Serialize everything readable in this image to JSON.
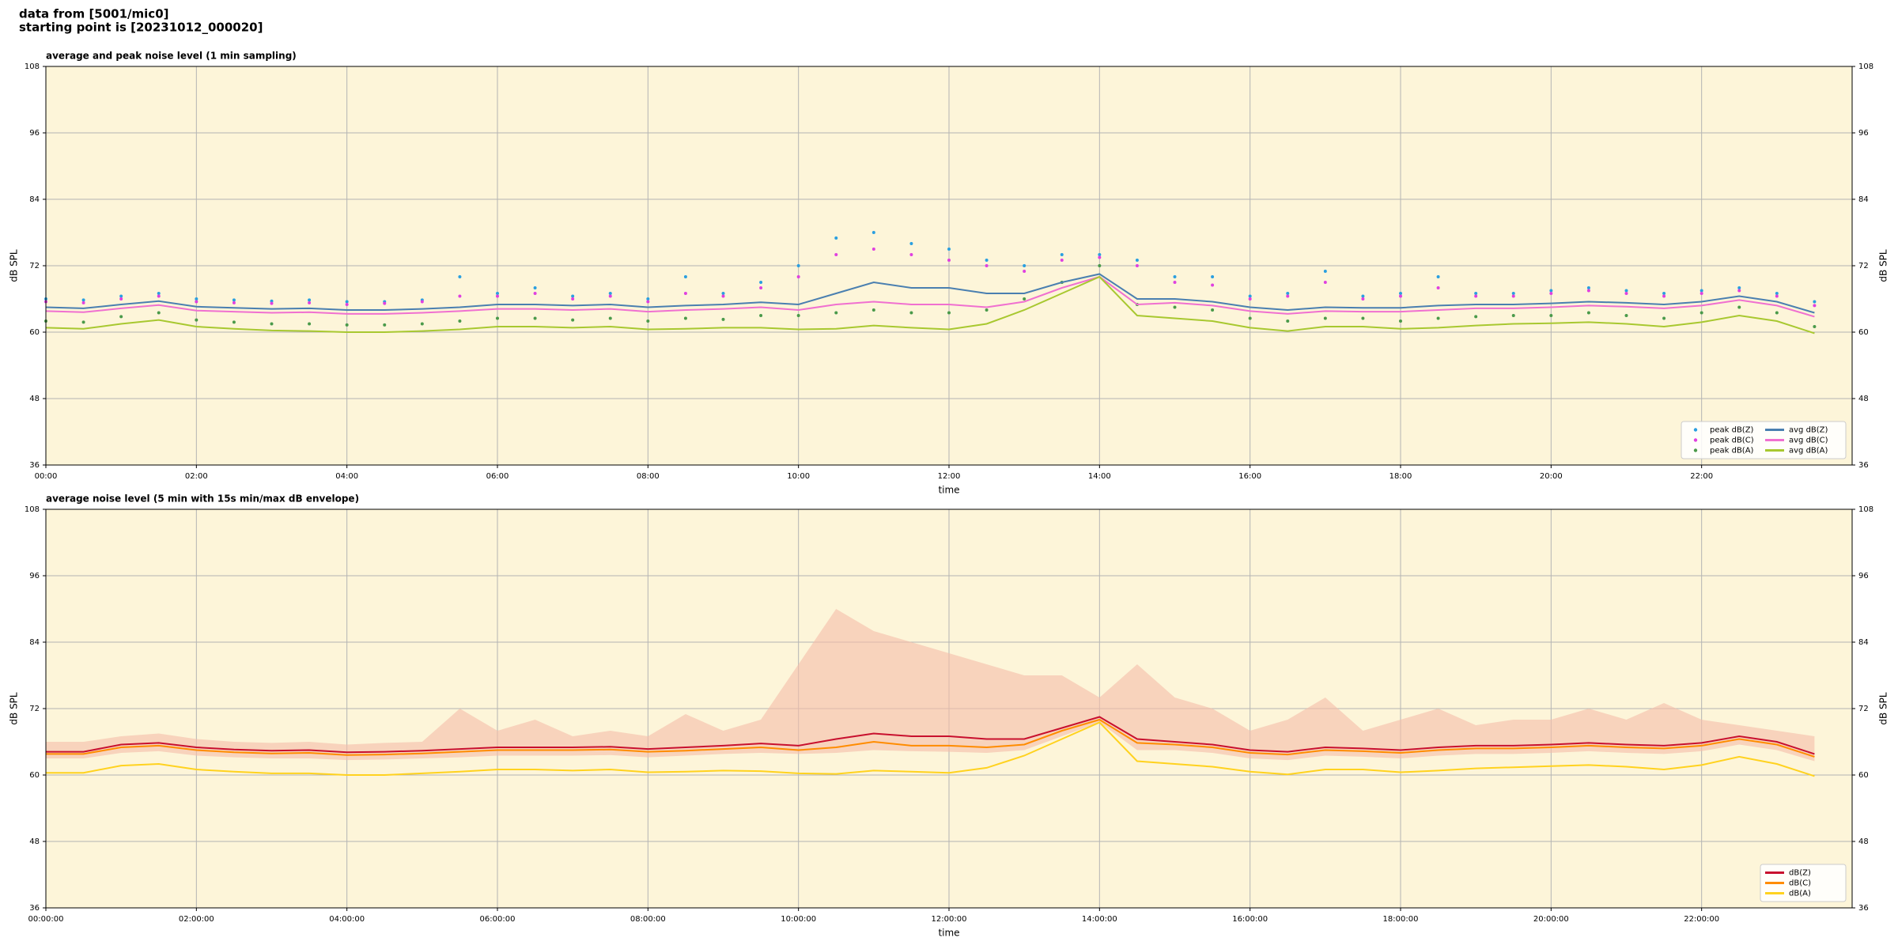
{
  "header": {
    "line1": "data from [5001/mic0]",
    "line2": "starting point is [20231012_000020]"
  },
  "chart_data": [
    {
      "type": "line",
      "title": "average and peak noise level (1 min sampling)",
      "xlabel": "time",
      "ylabel": "dB SPL",
      "x": [
        0,
        0.5,
        1,
        1.5,
        2,
        2.5,
        3,
        3.5,
        4,
        4.5,
        5,
        5.5,
        6,
        6.5,
        7,
        7.5,
        8,
        8.5,
        9,
        9.5,
        10,
        10.5,
        11,
        11.5,
        12,
        12.5,
        13,
        13.5,
        14,
        14.5,
        15,
        15.5,
        16,
        16.5,
        17,
        17.5,
        18,
        18.5,
        19,
        19.5,
        20,
        20.5,
        21,
        21.5,
        22,
        22.5,
        23,
        23.5
      ],
      "xlim": [
        0,
        24
      ],
      "xticks": [
        {
          "value": 0,
          "label": "00:00"
        },
        {
          "value": 2,
          "label": "02:00"
        },
        {
          "value": 4,
          "label": "04:00"
        },
        {
          "value": 6,
          "label": "06:00"
        },
        {
          "value": 8,
          "label": "08:00"
        },
        {
          "value": 10,
          "label": "10:00"
        },
        {
          "value": 12,
          "label": "12:00"
        },
        {
          "value": 14,
          "label": "14:00"
        },
        {
          "value": 16,
          "label": "16:00"
        },
        {
          "value": 18,
          "label": "18:00"
        },
        {
          "value": 20,
          "label": "20:00"
        },
        {
          "value": 22,
          "label": "22:00"
        }
      ],
      "ylim": [
        36,
        108
      ],
      "yticks": [
        36,
        48,
        60,
        72,
        84,
        96,
        108
      ],
      "grid": true,
      "legend": "lower right",
      "legend_columns": 2,
      "series": [
        {
          "name": "peak dB(Z)",
          "style": "dots",
          "color": "#2a9fe0",
          "values": [
            66,
            65.8,
            66.5,
            67,
            66,
            65.8,
            65.6,
            65.8,
            65.5,
            65.5,
            65.8,
            70,
            67,
            68,
            66.5,
            67,
            66,
            70,
            67,
            69,
            72,
            77,
            78,
            76,
            75,
            73,
            72,
            74,
            74,
            73,
            70,
            70,
            66.5,
            67,
            71,
            66.5,
            67,
            70,
            67,
            67,
            67.5,
            68,
            67.5,
            67,
            67.5,
            68,
            67,
            65.5
          ]
        },
        {
          "name": "peak dB(C)",
          "style": "dots",
          "color": "#e040e0",
          "values": [
            65.5,
            65.3,
            66,
            66.5,
            65.5,
            65.3,
            65.2,
            65.3,
            65,
            65.2,
            65.5,
            66.5,
            66.5,
            67,
            66,
            66.5,
            65.5,
            67,
            66.5,
            68,
            70,
            74,
            75,
            74,
            73,
            72,
            71,
            73,
            73.5,
            72,
            69,
            68.5,
            66,
            66.5,
            69,
            66,
            66.5,
            68,
            66.5,
            66.5,
            67,
            67.5,
            67,
            66.5,
            67,
            67.5,
            66.5,
            64.8
          ]
        },
        {
          "name": "peak dB(A)",
          "style": "dots",
          "color": "#4a9a4a",
          "values": [
            62,
            61.8,
            62.8,
            63.5,
            62.2,
            61.8,
            61.5,
            61.5,
            61.3,
            61.3,
            61.5,
            62,
            62.5,
            62.5,
            62.2,
            62.5,
            62,
            62.5,
            62.3,
            63,
            63,
            63.5,
            64,
            63.5,
            63.5,
            64,
            66,
            69,
            72,
            65,
            64.5,
            64,
            62.5,
            62,
            62.5,
            62.5,
            62,
            62.5,
            62.8,
            63,
            63,
            63.5,
            63,
            62.5,
            63.5,
            64.5,
            63.5,
            61
          ]
        },
        {
          "name": "avg dB(Z)",
          "style": "line",
          "color": "#4a7fb0",
          "values": [
            64.5,
            64.3,
            65,
            65.6,
            64.6,
            64.4,
            64.2,
            64.3,
            64,
            64,
            64.2,
            64.5,
            65,
            65,
            64.8,
            65,
            64.5,
            64.8,
            65,
            65.4,
            65,
            67,
            69,
            68,
            68,
            67,
            67,
            69,
            70.5,
            66,
            66,
            65.5,
            64.5,
            64,
            64.5,
            64.4,
            64.4,
            64.8,
            65,
            65,
            65.2,
            65.5,
            65.3,
            65,
            65.5,
            66.5,
            65.5,
            63.5
          ]
        },
        {
          "name": "avg dB(C)",
          "style": "line",
          "color": "#f070d0",
          "values": [
            63.8,
            63.6,
            64.3,
            64.9,
            63.9,
            63.7,
            63.5,
            63.6,
            63.3,
            63.3,
            63.5,
            63.8,
            64.2,
            64.2,
            64,
            64.2,
            63.7,
            64,
            64.2,
            64.5,
            64,
            65,
            65.5,
            65,
            65,
            64.5,
            65.5,
            68,
            70,
            65,
            65.3,
            64.8,
            63.8,
            63.3,
            63.8,
            63.7,
            63.7,
            64,
            64.3,
            64.3,
            64.5,
            64.8,
            64.6,
            64.3,
            64.8,
            65.8,
            64.8,
            62.8
          ]
        },
        {
          "name": "avg dB(A)",
          "style": "line",
          "color": "#a8c830",
          "values": [
            60.8,
            60.6,
            61.5,
            62.2,
            61,
            60.6,
            60.3,
            60.2,
            60,
            60,
            60.2,
            60.5,
            61,
            61,
            60.8,
            61,
            60.5,
            60.6,
            60.8,
            60.8,
            60.5,
            60.6,
            61.2,
            60.8,
            60.5,
            61.5,
            64,
            67,
            70,
            63,
            62.5,
            62,
            60.8,
            60.2,
            61,
            61,
            60.6,
            60.8,
            61.2,
            61.5,
            61.6,
            61.8,
            61.5,
            61,
            61.8,
            63,
            62,
            59.8
          ]
        }
      ]
    },
    {
      "type": "line",
      "title": "average noise level (5 min with 15s min/max dB envelope)",
      "xlabel": "time",
      "ylabel": "dB SPL",
      "x": [
        0,
        0.5,
        1,
        1.5,
        2,
        2.5,
        3,
        3.5,
        4,
        4.5,
        5,
        5.5,
        6,
        6.5,
        7,
        7.5,
        8,
        8.5,
        9,
        9.5,
        10,
        10.5,
        11,
        11.5,
        12,
        12.5,
        13,
        13.5,
        14,
        14.5,
        15,
        15.5,
        16,
        16.5,
        17,
        17.5,
        18,
        18.5,
        19,
        19.5,
        20,
        20.5,
        21,
        21.5,
        22,
        22.5,
        23,
        23.5
      ],
      "xlim": [
        0,
        24
      ],
      "xticks": [
        {
          "value": 0,
          "label": "00:00:00"
        },
        {
          "value": 2,
          "label": "02:00:00"
        },
        {
          "value": 4,
          "label": "04:00:00"
        },
        {
          "value": 6,
          "label": "06:00:00"
        },
        {
          "value": 8,
          "label": "08:00:00"
        },
        {
          "value": 10,
          "label": "10:00:00"
        },
        {
          "value": 12,
          "label": "12:00:00"
        },
        {
          "value": 14,
          "label": "14:00:00"
        },
        {
          "value": 16,
          "label": "16:00:00"
        },
        {
          "value": 18,
          "label": "18:00:00"
        },
        {
          "value": 20,
          "label": "20:00:00"
        },
        {
          "value": 22,
          "label": "22:00:00"
        }
      ],
      "ylim": [
        36,
        108
      ],
      "yticks": [
        36,
        48,
        60,
        72,
        84,
        96,
        108
      ],
      "grid": true,
      "legend": "lower right",
      "legend_columns": 1,
      "band": {
        "color": "#f5bca8",
        "lower": [
          63,
          63,
          64,
          64.3,
          63.5,
          63.2,
          63,
          63,
          62.7,
          62.8,
          63,
          63.2,
          63.5,
          63.5,
          63.5,
          63.6,
          63.2,
          63.5,
          63.8,
          64,
          63.8,
          64,
          64.5,
          64.3,
          64.2,
          64,
          64.5,
          67,
          69.5,
          64.5,
          64.5,
          64,
          63,
          62.7,
          63.5,
          63.3,
          63,
          63.5,
          63.8,
          63.8,
          64,
          64.3,
          64,
          63.8,
          64.3,
          65.5,
          64.5,
          62.5
        ],
        "upper": [
          66,
          66,
          67,
          67.5,
          66.5,
          66,
          65.8,
          66,
          65.5,
          65.8,
          66,
          72,
          68,
          70,
          67,
          68,
          67,
          71,
          68,
          70,
          80,
          90,
          86,
          84,
          82,
          80,
          78,
          78,
          74,
          80,
          74,
          72,
          68,
          70,
          74,
          68,
          70,
          72,
          69,
          70,
          70,
          72,
          70,
          73,
          70,
          69,
          68,
          67
        ]
      },
      "series": [
        {
          "name": "dB(Z)",
          "style": "line",
          "color": "#c8102e",
          "values": [
            64.2,
            64.2,
            65.5,
            65.8,
            65,
            64.6,
            64.4,
            64.5,
            64.1,
            64.2,
            64.4,
            64.7,
            65,
            65,
            65,
            65.1,
            64.7,
            65,
            65.3,
            65.7,
            65.3,
            66.5,
            67.5,
            67,
            67,
            66.5,
            66.5,
            68.5,
            70.5,
            66.5,
            66,
            65.5,
            64.5,
            64.2,
            65,
            64.8,
            64.5,
            65,
            65.3,
            65.3,
            65.5,
            65.8,
            65.5,
            65.3,
            65.8,
            67,
            66,
            63.8
          ]
        },
        {
          "name": "dB(C)",
          "style": "line",
          "color": "#ff8c00",
          "values": [
            63.8,
            63.8,
            65,
            65.3,
            64.5,
            64.1,
            63.9,
            64,
            63.6,
            63.7,
            63.9,
            64.2,
            64.5,
            64.5,
            64.5,
            64.6,
            64.2,
            64.4,
            64.7,
            65,
            64.5,
            65,
            66,
            65.3,
            65.3,
            65,
            65.5,
            68,
            70,
            65.8,
            65.5,
            65,
            64,
            63.7,
            64.5,
            64.3,
            64,
            64.5,
            64.8,
            64.8,
            65,
            65.3,
            65,
            64.8,
            65.3,
            66.5,
            65.5,
            63.3
          ]
        },
        {
          "name": "dB(A)",
          "style": "line",
          "color": "#ffd21f",
          "values": [
            60.4,
            60.4,
            61.7,
            62,
            61,
            60.6,
            60.3,
            60.3,
            60,
            60,
            60.3,
            60.6,
            61,
            61,
            60.8,
            61,
            60.5,
            60.6,
            60.8,
            60.7,
            60.3,
            60.2,
            60.8,
            60.6,
            60.4,
            61.3,
            63.5,
            66.5,
            69.5,
            62.5,
            62,
            61.5,
            60.6,
            60.1,
            61,
            61,
            60.5,
            60.8,
            61.2,
            61.4,
            61.6,
            61.8,
            61.5,
            61,
            61.8,
            63.3,
            62,
            59.8
          ]
        }
      ]
    }
  ]
}
